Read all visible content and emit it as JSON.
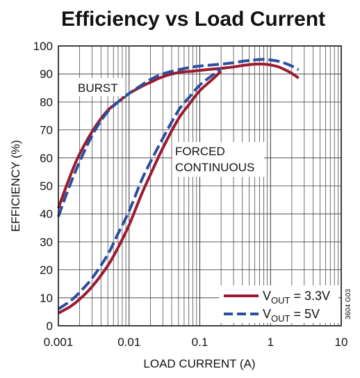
{
  "chart_data": {
    "type": "line",
    "title": "Efficiency vs Load Current",
    "xlabel": "LOAD CURRENT (A)",
    "ylabel": "EFFICIENCY (%)",
    "xscale": "log",
    "xlim": [
      0.001,
      10
    ],
    "ylim": [
      0,
      100
    ],
    "grid": true,
    "x_ticks": [
      "0.001",
      "0.01",
      "0.1",
      "1",
      "10"
    ],
    "y_ticks": [
      "0",
      "10",
      "20",
      "30",
      "40",
      "50",
      "60",
      "70",
      "80",
      "90",
      "100"
    ],
    "legend_position": "bottom-right",
    "annotations": [
      "BURST",
      "FORCED",
      "CONTINUOUS"
    ],
    "figure_code": "3604 G03",
    "series": [
      {
        "name_main": "V",
        "name_sub": "OUT",
        "name_rest": " = 3.3V",
        "color": "#9b1b30",
        "dash": "solid",
        "curves": [
          {
            "label": "BURST",
            "x": [
              0.001,
              0.0013,
              0.0018,
              0.0025,
              0.0035,
              0.005,
              0.007,
              0.01,
              0.015,
              0.02,
              0.03,
              0.05,
              0.08,
              0.12,
              0.2,
              0.3,
              0.4,
              0.5,
              0.6,
              0.8,
              1.0,
              1.3,
              1.6,
              2.0,
              2.5
            ],
            "y": [
              42,
              50,
              59,
              66,
              72,
              77,
              80,
              83,
              85.5,
              87,
              89,
              90.5,
              91,
              91.5,
              92,
              92.5,
              93,
              93.3,
              93.5,
              93.5,
              93.2,
              92.5,
              91.5,
              90.2,
              88.5
            ]
          },
          {
            "label": "FORCED CONTINUOUS",
            "x": [
              0.001,
              0.0015,
              0.002,
              0.003,
              0.005,
              0.007,
              0.01,
              0.015,
              0.02,
              0.03,
              0.05,
              0.07,
              0.1,
              0.15,
              0.2
            ],
            "y": [
              4.5,
              7,
              9.5,
              14,
              21.5,
              28,
              36,
              47,
              54,
              63.5,
              74,
              79,
              84,
              88,
              91
            ]
          }
        ]
      },
      {
        "name_main": "V",
        "name_sub": "OUT",
        "name_rest": " = 5V",
        "color": "#2b4fa0",
        "dash": "dashed",
        "curves": [
          {
            "label": "BURST",
            "x": [
              0.001,
              0.0013,
              0.0018,
              0.0025,
              0.0035,
              0.005,
              0.007,
              0.01,
              0.015,
              0.02,
              0.03,
              0.05,
              0.08,
              0.12,
              0.2,
              0.3,
              0.4,
              0.5,
              0.6,
              0.8,
              1.0,
              1.3,
              1.6,
              2.0,
              2.5
            ],
            "y": [
              39,
              47,
              56,
              64,
              71,
              76.5,
              80,
              83,
              86,
              88,
              90,
              91.5,
              92.5,
              93,
              93.5,
              94,
              94.5,
              94.8,
              95,
              95.2,
              95,
              94.5,
              93.8,
              92.8,
              91.5
            ]
          },
          {
            "label": "FORCED CONTINUOUS",
            "x": [
              0.001,
              0.0015,
              0.002,
              0.003,
              0.005,
              0.007,
              0.01,
              0.015,
              0.02,
              0.03,
              0.05,
              0.07,
              0.1,
              0.15,
              0.2
            ],
            "y": [
              6,
              9,
              12,
              17,
              25.5,
              33,
              41,
              52,
              58.5,
              67,
              77,
              81.5,
              86,
              89.5,
              92
            ]
          }
        ]
      }
    ]
  }
}
